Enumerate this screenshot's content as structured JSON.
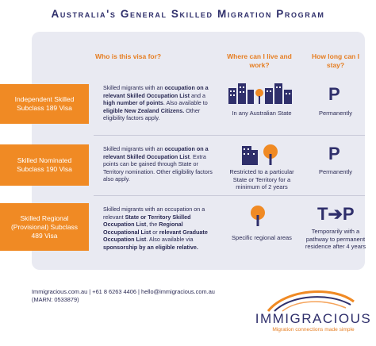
{
  "title": "Australia's General Skilled Migration Program",
  "columns": {
    "who": "Who is this visa for?",
    "where": "Where can I live and work?",
    "how_long": "How long can I stay?"
  },
  "visas": [
    {
      "tag": "Independent Skilled Subclass 189 Visa",
      "desc": [
        {
          "t": "Skilled migrants with an ",
          "b": false
        },
        {
          "t": "occupation on a relevant Skilled Occupation List",
          "b": true
        },
        {
          "t": " and a ",
          "b": false
        },
        {
          "t": "high number of points",
          "b": true
        },
        {
          "t": ". Also available to ",
          "b": false
        },
        {
          "t": "eligible New Zealand Citizens.",
          "b": true
        },
        {
          "t": " Other eligibility factors apply.",
          "b": false
        }
      ],
      "where": "In any Australian State",
      "where_icon": "buildings-icon",
      "stay": "Permanently",
      "stay_symbol": "P"
    },
    {
      "tag": "Skilled Nominated Subclass 190 Visa",
      "desc": [
        {
          "t": "Skilled migrants with an ",
          "b": false
        },
        {
          "t": "occupation on a relevant Skilled Occupation List",
          "b": true
        },
        {
          "t": ". Extra points can be gained through State or Territory nomination. Other eligibility factors also apply.",
          "b": false
        }
      ],
      "where": "Restricted to a particular State or Territory for a minimum of 2 years",
      "where_icon": "building-and-tree-icon",
      "stay": "Permanently",
      "stay_symbol": "P"
    },
    {
      "tag": "Skilled Regional (Provisional) Subclass 489 Visa",
      "desc": [
        {
          "t": "Skilled migrants with an occupation on a relevant ",
          "b": false
        },
        {
          "t": "State or Territory Skilled Occupation List",
          "b": true
        },
        {
          "t": ", the ",
          "b": false
        },
        {
          "t": "Regional Occupational List",
          "b": true
        },
        {
          "t": " or ",
          "b": false
        },
        {
          "t": "relevant Graduate Occupation List",
          "b": true
        },
        {
          "t": ". Also available via ",
          "b": false
        },
        {
          "t": "sponsorship by an eligible relative.",
          "b": true
        }
      ],
      "where": "Specific regional areas",
      "where_icon": "tree-icon",
      "stay": "Temporarily with a pathway to permanent residence after 4 years",
      "stay_symbol": "T➔P"
    }
  ],
  "footer": {
    "line1": "Immigracious.com.au | +61 8 6263 4406 | hello@immigracious.com.au",
    "line2": "(MARN: 0533879)"
  },
  "logo": {
    "name": "IMMIGRACIOUS",
    "tagline": "Migration connections made simple"
  },
  "colors": {
    "accent": "#f08a24",
    "navy": "#2f2f6b",
    "panel": "#e9eaf2"
  }
}
